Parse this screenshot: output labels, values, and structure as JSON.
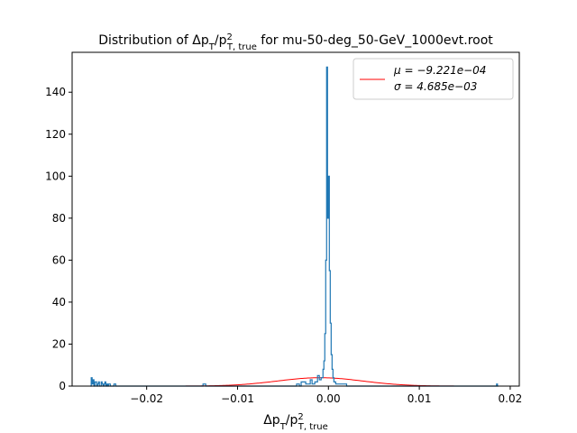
{
  "chart_data": {
    "type": "histogram",
    "title_prefix": "Distribution of Δp",
    "title_sub_T": "T",
    "title_slash": "/p",
    "title_sup_2": "2",
    "title_sub_true": "T, true",
    "title_suffix": " for mu-50-deg_50-GeV_1000evt.root",
    "xlabel_parts": {
      "main": "Δp",
      "sub1": "T",
      "slash": "/p",
      "sup": "2",
      "sub2": "T, true"
    },
    "xlim": [
      -0.0282,
      0.021
    ],
    "ylim": [
      0,
      159
    ],
    "xticks": [
      -0.02,
      -0.01,
      0.0,
      0.01,
      0.02
    ],
    "xtick_labels": [
      "−0.02",
      "−0.01",
      "0.00",
      "0.01",
      "0.02"
    ],
    "yticks": [
      0,
      20,
      40,
      60,
      80,
      100,
      120,
      140
    ],
    "ytick_labels": [
      "0",
      "20",
      "40",
      "60",
      "80",
      "100",
      "120",
      "140"
    ],
    "histogram_color": "#1f77b4",
    "fit_color": "#ff0000",
    "histogram": {
      "x": [
        -0.0262,
        -0.0261,
        -0.026,
        -0.0259,
        -0.0258,
        -0.0257,
        -0.0255,
        -0.0254,
        -0.0253,
        -0.0252,
        -0.025,
        -0.0249,
        -0.0248,
        -0.0247,
        -0.0246,
        -0.0245,
        -0.0244,
        -0.0243,
        -0.0242,
        -0.024,
        -0.0238,
        -0.0236,
        -0.0234,
        -0.0232,
        -0.023,
        -0.0226,
        -0.0222,
        -0.0218,
        -0.0214,
        -0.021,
        -0.02,
        -0.019,
        -0.018,
        -0.017,
        -0.016,
        -0.015,
        -0.014,
        -0.0138,
        -0.0135,
        -0.013,
        -0.012,
        -0.011,
        -0.01,
        -0.009,
        -0.008,
        -0.007,
        -0.006,
        -0.005,
        -0.004,
        -0.0035,
        -0.0032,
        -0.003,
        -0.0025,
        -0.002,
        -0.0018,
        -0.0015,
        -0.0012,
        -0.001,
        -0.0008,
        -0.0006,
        -0.0005,
        -0.0004,
        -0.0003,
        -0.0002,
        -0.0001,
        0.0,
        0.0001,
        0.0002,
        0.0003,
        0.0004,
        0.0005,
        0.0006,
        0.0008,
        0.001,
        0.0015,
        0.002,
        0.003,
        0.005,
        0.008,
        0.01,
        0.012,
        0.015,
        0.018,
        0.0185,
        0.0186
      ],
      "y": [
        0,
        4,
        1,
        3,
        0,
        2,
        0,
        1,
        2,
        0,
        2,
        1,
        0,
        1,
        2,
        0,
        1,
        0,
        1,
        0,
        0,
        1,
        0,
        0,
        0,
        0,
        0,
        0,
        0,
        0,
        0,
        0,
        0,
        0,
        0,
        0,
        0,
        1,
        0,
        0,
        0,
        0,
        0,
        0,
        0,
        0,
        0,
        0,
        0,
        1,
        0,
        2,
        1,
        3,
        1,
        2,
        5,
        3,
        4,
        8,
        12,
        25,
        60,
        152,
        80,
        100,
        55,
        30,
        15,
        8,
        4,
        2,
        1,
        1,
        1,
        0,
        0,
        0,
        0,
        0,
        0,
        0,
        0,
        1,
        0
      ]
    },
    "series": [
      {
        "name": "Gaussian fit",
        "mu": -0.0009221,
        "sigma": 0.004685,
        "peak": 4.0
      }
    ],
    "legend": {
      "position": "top-right",
      "mu_label": "μ = −9.221e−04",
      "sigma_label": "σ = 4.685e−03"
    }
  }
}
